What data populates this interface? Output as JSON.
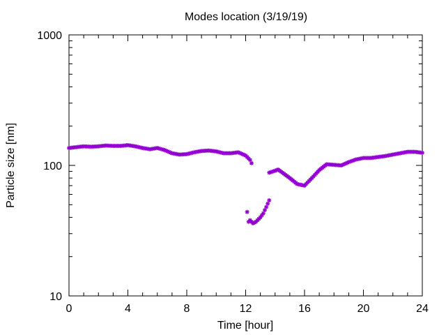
{
  "chart_data": {
    "type": "scatter",
    "title": "Modes location (3/19/19)",
    "xlabel": "Time [hour]",
    "ylabel": "Particle size [nm]",
    "xlim": [
      0,
      24
    ],
    "ylim": [
      10,
      1000
    ],
    "yscale": "log",
    "x_ticks": [
      0,
      4,
      8,
      12,
      16,
      20,
      24
    ],
    "x_tick_labels": [
      "0",
      "4",
      "8",
      "12",
      "16",
      "20",
      "24"
    ],
    "y_ticks": [
      10,
      100,
      1000
    ],
    "y_tick_labels": [
      "10",
      "100",
      "1000"
    ],
    "grid": false,
    "legend": "none",
    "marker_color": "#9400d3",
    "series": [
      {
        "segments": [
          [
            [
              0,
              136
            ],
            [
              0.5,
              138
            ],
            [
              1,
              140
            ],
            [
              1.5,
              139
            ],
            [
              2,
              140
            ],
            [
              2.5,
              142
            ],
            [
              3,
              141
            ],
            [
              3.5,
              141
            ],
            [
              4,
              143
            ],
            [
              4.5,
              140
            ],
            [
              5,
              136
            ],
            [
              5.5,
              133
            ],
            [
              6,
              136
            ],
            [
              6.5,
              131
            ],
            [
              7,
              124
            ],
            [
              7.5,
              121
            ],
            [
              8,
              122
            ],
            [
              8.5,
              126
            ],
            [
              9,
              129
            ],
            [
              9.5,
              130
            ],
            [
              10,
              128
            ],
            [
              10.5,
              124
            ],
            [
              11,
              124
            ],
            [
              11.5,
              126
            ],
            [
              12,
              119
            ],
            [
              12.3,
              110
            ],
            [
              12.4,
              104
            ]
          ],
          [
            [
              12.1,
              44
            ],
            [
              12.2,
              37
            ],
            [
              12.3,
              38
            ],
            [
              12.5,
              36
            ],
            [
              12.7,
              37
            ],
            [
              13,
              40
            ],
            [
              13.2,
              43
            ],
            [
              13.4,
              48
            ],
            [
              13.6,
              54
            ]
          ],
          [
            [
              13.6,
              88
            ],
            [
              14,
              91
            ],
            [
              14.2,
              93
            ],
            [
              14.5,
              88
            ],
            [
              15,
              80
            ],
            [
              15.5,
              72
            ],
            [
              16,
              70
            ],
            [
              16.5,
              80
            ],
            [
              17,
              92
            ],
            [
              17.5,
              102
            ],
            [
              18,
              101
            ],
            [
              18.5,
              100
            ],
            [
              19,
              106
            ],
            [
              19.5,
              111
            ],
            [
              20,
              114
            ],
            [
              20.5,
              114
            ],
            [
              21,
              116
            ],
            [
              21.5,
              118
            ],
            [
              22,
              121
            ],
            [
              22.5,
              124
            ],
            [
              23,
              127
            ],
            [
              23.5,
              127
            ],
            [
              24,
              125
            ]
          ]
        ]
      }
    ]
  }
}
